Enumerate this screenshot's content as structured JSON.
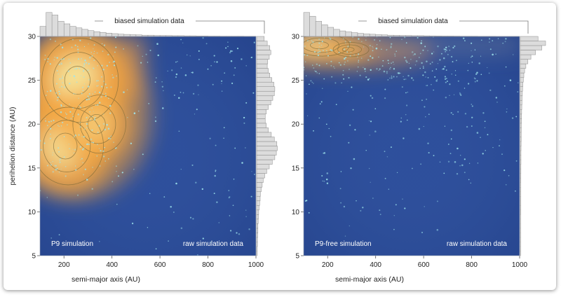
{
  "chart_data": [
    {
      "type": "heatmap",
      "panel_label": "P9 simulation",
      "corner_label": "raw simulation data",
      "top_hist_label": "biased simulation data",
      "xlabel": "semi-major axis (AU)",
      "ylabel": "perihelion distance (AU)",
      "xlim": [
        100,
        1000
      ],
      "ylim": [
        5,
        30
      ],
      "xticks": [
        "200",
        "400",
        "600",
        "800",
        "1000"
      ],
      "yticks": [
        "5",
        "10",
        "15",
        "20",
        "25",
        "30"
      ],
      "colors": {
        "background": "#2e4f9c",
        "density_high": "#f4a640",
        "density_peak": "#f6e9a0",
        "points": "#9fe6ee",
        "hist": "#dcdcdc"
      },
      "density_peaks": [
        {
          "a": 250,
          "q": 25,
          "weight": 1.0
        },
        {
          "a": 200,
          "q": 17.5,
          "weight": 0.9
        },
        {
          "a": 330,
          "q": 20,
          "weight": 0.6
        }
      ],
      "top_hist": [
        0.4,
        0.95,
        0.85,
        0.6,
        0.5,
        0.4,
        0.34,
        0.28,
        0.23,
        0.19,
        0.16,
        0.13,
        0.11,
        0.09,
        0.08,
        0.07,
        0.06,
        0.05,
        0.05,
        0.04,
        0.04,
        0.035,
        0.03,
        0.03,
        0.025,
        0.025,
        0.02,
        0.02,
        0.015,
        0.015,
        0.012,
        0.012,
        0.01,
        0.01,
        0.008,
        0.008
      ],
      "right_hist": [
        0.02,
        0.02,
        0.03,
        0.03,
        0.04,
        0.05,
        0.05,
        0.06,
        0.07,
        0.08,
        0.1,
        0.12,
        0.14,
        0.15,
        0.18,
        0.22,
        0.26,
        0.32,
        0.4,
        0.5,
        0.62,
        0.72,
        0.78,
        0.82,
        0.8,
        0.7,
        0.58,
        0.46,
        0.38,
        0.34,
        0.34,
        0.38,
        0.46,
        0.56,
        0.64,
        0.7,
        0.72,
        0.68,
        0.6,
        0.52,
        0.46,
        0.42,
        0.44,
        0.5,
        0.56,
        0.52,
        0.42,
        0.3
      ]
    },
    {
      "type": "heatmap",
      "panel_label": "P9-free simulation",
      "corner_label": "raw simulation data",
      "top_hist_label": "biased simulation data",
      "xlabel": "semi-major axis (AU)",
      "ylabel": "",
      "xlim": [
        100,
        1000
      ],
      "ylim": [
        5,
        30
      ],
      "xticks": [
        "200",
        "400",
        "600",
        "800",
        "1000"
      ],
      "yticks": [
        "5",
        "10",
        "15",
        "20",
        "25",
        "30"
      ],
      "colors": {
        "background": "#2e4f9c",
        "density_high": "#f4a640",
        "density_peak": "#f6e9a0",
        "points": "#9fe6ee",
        "hist": "#dcdcdc"
      },
      "density_peaks": [
        {
          "a": 160,
          "q": 29,
          "weight": 1.0
        },
        {
          "a": 280,
          "q": 28.5,
          "weight": 0.55
        }
      ],
      "top_hist": [
        0.95,
        0.8,
        0.6,
        0.46,
        0.36,
        0.28,
        0.22,
        0.18,
        0.15,
        0.12,
        0.1,
        0.085,
        0.07,
        0.06,
        0.05,
        0.045,
        0.04,
        0.035,
        0.03,
        0.03,
        0.025,
        0.022,
        0.02,
        0.018,
        0.016,
        0.014,
        0.012,
        0.011,
        0.01,
        0.009,
        0.008,
        0.007,
        0.006,
        0.006,
        0.005,
        0.005
      ],
      "right_hist": [
        0.01,
        0.01,
        0.01,
        0.01,
        0.01,
        0.01,
        0.012,
        0.012,
        0.012,
        0.014,
        0.014,
        0.015,
        0.016,
        0.016,
        0.018,
        0.018,
        0.02,
        0.02,
        0.022,
        0.022,
        0.024,
        0.025,
        0.026,
        0.028,
        0.03,
        0.032,
        0.034,
        0.036,
        0.04,
        0.044,
        0.048,
        0.052,
        0.058,
        0.064,
        0.07,
        0.08,
        0.09,
        0.1,
        0.12,
        0.14,
        0.17,
        0.22,
        0.3,
        0.42,
        0.6,
        0.85,
        1.0,
        0.7
      ]
    }
  ]
}
